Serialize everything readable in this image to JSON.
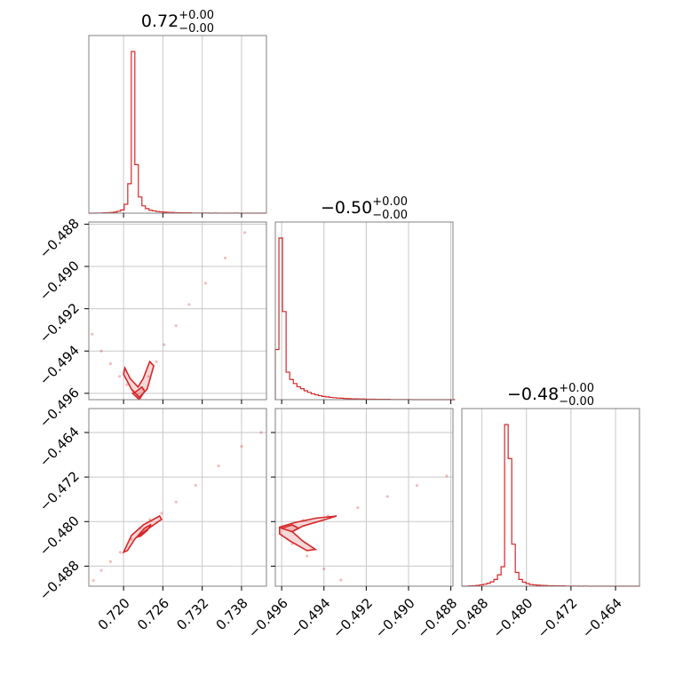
{
  "colors": {
    "series": "#d62728",
    "frame": "#808080",
    "grid": "#c8c8c8",
    "text": "#000000"
  },
  "chart_data": {
    "type": "corner",
    "grid": true,
    "parameters": [
      {
        "range": [
          0.7147,
          0.7418
        ],
        "ticks": [
          0.72,
          0.726,
          0.732,
          0.738
        ],
        "tick_labels": [
          "0.720",
          "0.726",
          "0.732",
          "0.738"
        ],
        "title": {
          "value": "0.72",
          "plus": "+0.00",
          "minus": "−0.00"
        }
      },
      {
        "range": [
          -0.4963,
          -0.4879
        ],
        "ticks": [
          -0.496,
          -0.494,
          -0.492,
          -0.49,
          -0.488
        ],
        "tick_labels": [
          "−0.496",
          "−0.494",
          "−0.492",
          "−0.490",
          "−0.488"
        ],
        "title": {
          "value": "−0.50",
          "plus": "+0.00",
          "minus": "−0.00"
        }
      },
      {
        "range": [
          -0.4916,
          -0.4597
        ],
        "ticks": [
          -0.488,
          -0.48,
          -0.472,
          -0.464
        ],
        "tick_labels": [
          "−0.488",
          "−0.480",
          "−0.472",
          "−0.464"
        ],
        "title": {
          "value": "−0.48",
          "plus": "+0.00",
          "minus": "−0.00"
        }
      }
    ],
    "histograms": [
      {
        "param": 0,
        "edges": [
          0.7147,
          0.71524,
          0.71578,
          0.71632,
          0.71686,
          0.7174,
          0.71794,
          0.71848,
          0.71902,
          0.71956,
          0.7201,
          0.72064,
          0.72118,
          0.72172,
          0.72226,
          0.7228,
          0.72334,
          0.72388,
          0.72442,
          0.72496,
          0.7255,
          0.72604,
          0.72658,
          0.72712,
          0.72766,
          0.7282,
          0.72874,
          0.72928,
          0.72982,
          0.73036,
          0.7309,
          0.73144,
          0.73198,
          0.73252,
          0.73306,
          0.7336,
          0.73414,
          0.73468,
          0.73522,
          0.73576,
          0.7363,
          0.73684,
          0.73738,
          0.73792,
          0.73846,
          0.739,
          0.73954,
          0.74008,
          0.74062,
          0.74116,
          0.7417
        ],
        "counts": [
          0,
          0,
          1,
          1,
          2,
          3,
          4,
          7,
          12,
          20,
          55,
          182,
          1000,
          300,
          100,
          45,
          28,
          18,
          14,
          10,
          8,
          6,
          5,
          4,
          3,
          3,
          2,
          2,
          2,
          1,
          1,
          1,
          1,
          1,
          0,
          1,
          0,
          0,
          0,
          0,
          0,
          1,
          0,
          0,
          0,
          0,
          0,
          0,
          0,
          0
        ]
      },
      {
        "param": 1,
        "edges": [
          -0.4963,
          -0.49613,
          -0.49596,
          -0.49579,
          -0.49562,
          -0.49545,
          -0.49528,
          -0.49511,
          -0.49494,
          -0.49477,
          -0.4946,
          -0.49443,
          -0.49426,
          -0.49409,
          -0.49392,
          -0.49375,
          -0.49358,
          -0.49341,
          -0.49324,
          -0.49307,
          -0.4929,
          -0.49273,
          -0.49256,
          -0.49239,
          -0.49222,
          -0.49205,
          -0.49188,
          -0.49171,
          -0.49154,
          -0.49137,
          -0.4912,
          -0.49103,
          -0.49086,
          -0.49069,
          -0.49052,
          -0.49035,
          -0.49018,
          -0.49001,
          -0.48984,
          -0.48967,
          -0.4895,
          -0.48933,
          -0.48916,
          -0.48899,
          -0.48882,
          -0.48865,
          -0.48848,
          -0.48831,
          -0.48814,
          -0.48797,
          -0.4878
        ],
        "counts": [
          310,
          1000,
          545,
          170,
          125,
          100,
          80,
          68,
          55,
          45,
          36,
          30,
          25,
          20,
          17,
          14,
          12,
          10,
          9,
          7,
          6,
          5,
          5,
          4,
          4,
          3,
          3,
          3,
          2,
          2,
          2,
          2,
          1,
          1,
          1,
          1,
          1,
          1,
          0,
          0,
          0,
          0,
          0,
          0,
          0,
          0,
          0,
          0,
          0,
          0
        ]
      },
      {
        "param": 2,
        "edges": [
          -0.4916,
          -0.49096,
          -0.49032,
          -0.48968,
          -0.48904,
          -0.4884,
          -0.48776,
          -0.48712,
          -0.48648,
          -0.48584,
          -0.4852,
          -0.48456,
          -0.48392,
          -0.48328,
          -0.48264,
          -0.482,
          -0.48136,
          -0.48072,
          -0.48008,
          -0.47944,
          -0.4788,
          -0.47816,
          -0.47752,
          -0.47688,
          -0.47624,
          -0.4756,
          -0.47496,
          -0.47432,
          -0.47368,
          -0.47304,
          -0.4724,
          -0.47176,
          -0.47112,
          -0.47048,
          -0.46984,
          -0.4692,
          -0.46856,
          -0.46792,
          -0.46728,
          -0.46664,
          -0.466,
          -0.46536,
          -0.46472,
          -0.46408,
          -0.46344,
          -0.4628,
          -0.46216,
          -0.46152,
          -0.46088,
          -0.46024,
          -0.4596
        ],
        "counts": [
          0,
          0,
          2,
          3,
          5,
          8,
          12,
          18,
          27,
          42,
          70,
          120,
          1000,
          790,
          260,
          85,
          42,
          25,
          16,
          10,
          8,
          6,
          5,
          4,
          3,
          3,
          2,
          2,
          2,
          1,
          1,
          1,
          1,
          0,
          1,
          0,
          0,
          0,
          0,
          0,
          0,
          0,
          0,
          0,
          0,
          0,
          0,
          0,
          0,
          0
        ]
      }
    ],
    "pairs": [
      {
        "x_param": 0,
        "y_param": 1,
        "trail": [
          [
            0.7152,
            -0.4932
          ],
          [
            0.7166,
            -0.494
          ],
          [
            0.718,
            -0.4946
          ],
          [
            0.7194,
            -0.4952
          ],
          [
            0.7205,
            -0.4956
          ],
          [
            0.7214,
            -0.4959
          ],
          [
            0.7222,
            -0.4961
          ],
          [
            0.723,
            -0.4958
          ],
          [
            0.7238,
            -0.4952
          ],
          [
            0.725,
            -0.4945
          ],
          [
            0.7262,
            -0.4937
          ],
          [
            0.728,
            -0.4928
          ],
          [
            0.73,
            -0.4918
          ],
          [
            0.7325,
            -0.4908
          ],
          [
            0.7355,
            -0.4896
          ],
          [
            0.7385,
            -0.4884
          ],
          [
            0.7408,
            -0.4876
          ]
        ],
        "contours": [
          [
            [
              0.72,
              -0.4951
            ],
            [
              0.7212,
              -0.4958
            ],
            [
              0.7224,
              -0.4962
            ],
            [
              0.7236,
              -0.4958
            ],
            [
              0.7246,
              -0.4947
            ],
            [
              0.724,
              -0.4945
            ],
            [
              0.723,
              -0.4953
            ],
            [
              0.7222,
              -0.4957
            ],
            [
              0.721,
              -0.4953
            ],
            [
              0.7202,
              -0.4948
            ]
          ],
          [
            [
              0.7214,
              -0.496
            ],
            [
              0.7224,
              -0.4963
            ],
            [
              0.7232,
              -0.4959
            ],
            [
              0.7228,
              -0.4957
            ],
            [
              0.722,
              -0.4959
            ]
          ]
        ]
      },
      {
        "x_param": 0,
        "y_param": 2,
        "trail": [
          [
            0.7154,
            -0.4906
          ],
          [
            0.7166,
            -0.4888
          ],
          [
            0.718,
            -0.4872
          ],
          [
            0.7195,
            -0.4855
          ],
          [
            0.7212,
            -0.4832
          ],
          [
            0.7225,
            -0.4812
          ],
          [
            0.724,
            -0.4796
          ],
          [
            0.7258,
            -0.4785
          ],
          [
            0.728,
            -0.4765
          ],
          [
            0.731,
            -0.4735
          ],
          [
            0.7345,
            -0.47
          ],
          [
            0.738,
            -0.4665
          ],
          [
            0.741,
            -0.464
          ]
        ],
        "contours": [
          [
            [
              0.72,
              -0.4855
            ],
            [
              0.7212,
              -0.4825
            ],
            [
              0.723,
              -0.4806
            ],
            [
              0.7255,
              -0.479
            ],
            [
              0.7258,
              -0.4796
            ],
            [
              0.7235,
              -0.4815
            ],
            [
              0.7218,
              -0.483
            ],
            [
              0.7206,
              -0.4852
            ]
          ],
          [
            [
              0.722,
              -0.4828
            ],
            [
              0.7232,
              -0.4812
            ],
            [
              0.7242,
              -0.4805
            ],
            [
              0.7236,
              -0.4816
            ],
            [
              0.7226,
              -0.4826
            ]
          ]
        ]
      },
      {
        "x_param": 1,
        "y_param": 2,
        "trail": [
          [
            -0.496,
            -0.481
          ],
          [
            -0.495,
            -0.4798
          ],
          [
            -0.4938,
            -0.479
          ],
          [
            -0.4924,
            -0.4775
          ],
          [
            -0.491,
            -0.4755
          ],
          [
            -0.4896,
            -0.4735
          ],
          [
            -0.4882,
            -0.4718
          ],
          [
            -0.4955,
            -0.484
          ],
          [
            -0.4948,
            -0.4862
          ],
          [
            -0.494,
            -0.4885
          ],
          [
            -0.4932,
            -0.4905
          ],
          [
            -0.4925,
            -0.4922
          ]
        ],
        "contours": [
          [
            [
              -0.4961,
              -0.481
            ],
            [
              -0.4954,
              -0.4802
            ],
            [
              -0.4944,
              -0.4794
            ],
            [
              -0.4934,
              -0.479
            ],
            [
              -0.494,
              -0.4797
            ],
            [
              -0.495,
              -0.4808
            ],
            [
              -0.4955,
              -0.4818
            ],
            [
              -0.495,
              -0.4835
            ],
            [
              -0.4944,
              -0.485
            ],
            [
              -0.4948,
              -0.4852
            ],
            [
              -0.4956,
              -0.4835
            ],
            [
              -0.4961,
              -0.4822
            ]
          ],
          [
            [
              -0.496,
              -0.4812
            ],
            [
              -0.4955,
              -0.4806
            ],
            [
              -0.4952,
              -0.4812
            ],
            [
              -0.4955,
              -0.4818
            ]
          ]
        ]
      }
    ]
  }
}
